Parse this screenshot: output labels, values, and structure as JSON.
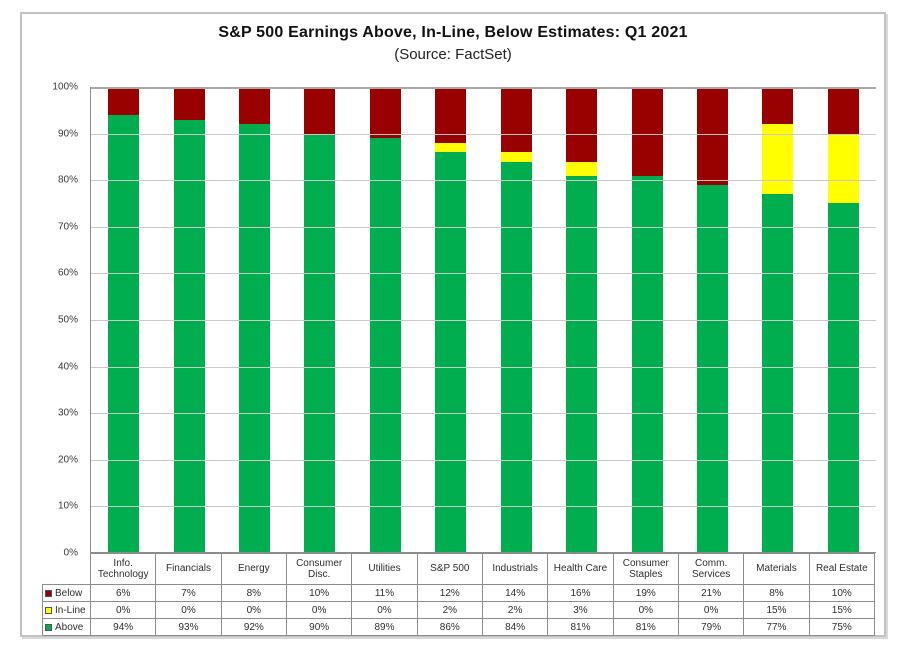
{
  "title": "S&P 500 Earnings Above, In-Line, Below Estimates: Q1 2021",
  "subtitle": "(Source: FactSet)",
  "colors": {
    "below": "#990000",
    "inline": "#FFFF00",
    "above": "#00AE50",
    "gridline": "#c9c9c9",
    "axis": "#8c8c8c"
  },
  "chart_data": {
    "type": "bar",
    "stacked": true,
    "orientation": "vertical",
    "title": "S&P 500 Earnings Above, In-Line, Below Estimates: Q1 2021",
    "subtitle": "(Source: FactSet)",
    "categories": [
      "Info. Technology",
      "Financials",
      "Energy",
      "Consumer Disc.",
      "Utilities",
      "S&P 500",
      "Industrials",
      "Health Care",
      "Consumer Staples",
      "Comm. Services",
      "Materials",
      "Real Estate"
    ],
    "series": [
      {
        "name": "Below",
        "color": "#990000",
        "values": [
          6,
          7,
          8,
          10,
          11,
          12,
          14,
          16,
          19,
          21,
          8,
          10
        ]
      },
      {
        "name": "In-Line",
        "color": "#FFFF00",
        "values": [
          0,
          0,
          0,
          0,
          0,
          2,
          2,
          3,
          0,
          0,
          15,
          15
        ]
      },
      {
        "name": "Above",
        "color": "#00AE50",
        "values": [
          94,
          93,
          92,
          90,
          89,
          86,
          84,
          81,
          81,
          79,
          77,
          75
        ]
      }
    ],
    "stack_order_top_to_bottom": [
      "Below",
      "In-Line",
      "Above"
    ],
    "y_ticks": [
      "100%",
      "90%",
      "80%",
      "70%",
      "60%",
      "50%",
      "40%",
      "30%",
      "20%",
      "10%",
      "0%"
    ],
    "ylim": [
      0,
      100
    ],
    "grid": true,
    "legend_position": "table-left-column"
  },
  "table": {
    "corner_label": "",
    "rows": [
      {
        "label": "Below",
        "swatch_color": "#990000",
        "values": [
          "6%",
          "7%",
          "8%",
          "10%",
          "11%",
          "12%",
          "14%",
          "16%",
          "19%",
          "21%",
          "8%",
          "10%"
        ]
      },
      {
        "label": "In-Line",
        "swatch_color": "#FFFF00",
        "values": [
          "0%",
          "0%",
          "0%",
          "0%",
          "0%",
          "2%",
          "2%",
          "3%",
          "0%",
          "0%",
          "15%",
          "15%"
        ]
      },
      {
        "label": "Above",
        "swatch_color": "#00AE50",
        "values": [
          "94%",
          "93%",
          "92%",
          "90%",
          "89%",
          "86%",
          "84%",
          "81%",
          "81%",
          "79%",
          "77%",
          "75%"
        ]
      }
    ]
  }
}
